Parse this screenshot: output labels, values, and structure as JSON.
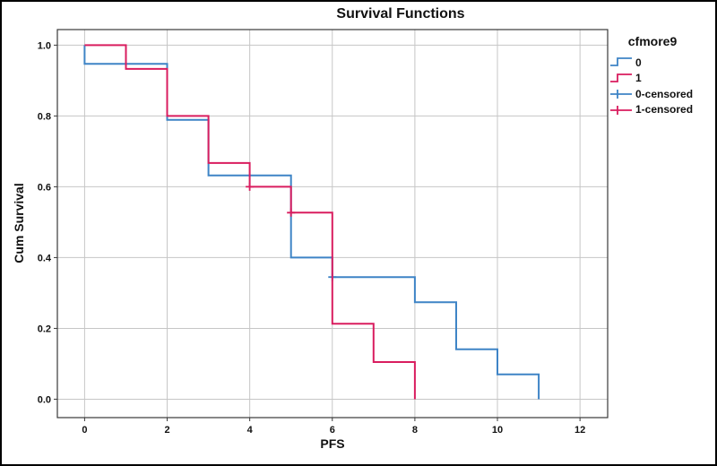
{
  "figure": {
    "background": "#ffffff",
    "border_color": "#000000"
  },
  "chart_data": {
    "type": "line",
    "line_style": "step",
    "kind": "survival-curve",
    "title": "Survival Functions",
    "xlabel": "PFS",
    "ylabel": "Cum Survival",
    "xlim": [
      -0.66,
      12.67
    ],
    "ylim": [
      -0.052,
      1.044
    ],
    "grid": true,
    "x_ticks": [
      {
        "v": 0,
        "label": "0"
      },
      {
        "v": 2,
        "label": "2"
      },
      {
        "v": 4,
        "label": "4"
      },
      {
        "v": 6,
        "label": "6"
      },
      {
        "v": 8,
        "label": "8"
      },
      {
        "v": 10,
        "label": "10"
      },
      {
        "v": 12,
        "label": "12"
      }
    ],
    "y_ticks": [
      {
        "v": 0.0,
        "label": "0.0"
      },
      {
        "v": 0.2,
        "label": "0.2"
      },
      {
        "v": 0.4,
        "label": "0.4"
      },
      {
        "v": 0.6,
        "label": "0.6"
      },
      {
        "v": 0.8,
        "label": "0.8"
      },
      {
        "v": 1.0,
        "label": "1.0"
      }
    ],
    "legend": {
      "title": "cfmore9",
      "position": "right",
      "entries": [
        {
          "label": "0",
          "series": 0,
          "glyph": "step"
        },
        {
          "label": "1",
          "series": 1,
          "glyph": "step"
        },
        {
          "label": "0-censored",
          "series": 0,
          "glyph": "censor"
        },
        {
          "label": "1-censored",
          "series": 1,
          "glyph": "censor"
        }
      ]
    },
    "series": [
      {
        "name": "0",
        "color": "#3E84C6",
        "start": [
          0,
          1.0
        ],
        "steps": [
          [
            0,
            0.947
          ],
          [
            2,
            0.789
          ],
          [
            3,
            0.632
          ],
          [
            5,
            0.4
          ],
          [
            6,
            0.345
          ],
          [
            8,
            0.274
          ],
          [
            9,
            0.141
          ],
          [
            10,
            0.07
          ],
          [
            11,
            0.0
          ]
        ],
        "censored": [
          [
            6,
            0.345
          ]
        ]
      },
      {
        "name": "1",
        "color": "#D91D5F",
        "start": [
          0,
          1.0
        ],
        "steps": [
          [
            1,
            0.933
          ],
          [
            2,
            0.8
          ],
          [
            3,
            0.667
          ],
          [
            4,
            0.6
          ],
          [
            5,
            0.527
          ],
          [
            6,
            0.213
          ],
          [
            7,
            0.105
          ],
          [
            8,
            0.0
          ]
        ],
        "censored": [
          [
            4,
            0.6
          ],
          [
            5,
            0.527
          ]
        ]
      }
    ],
    "colors": {
      "grid": "#c6c6c6",
      "frame": "#3a3a3a",
      "tick": "#3a3a3a",
      "text": "#111111"
    }
  }
}
